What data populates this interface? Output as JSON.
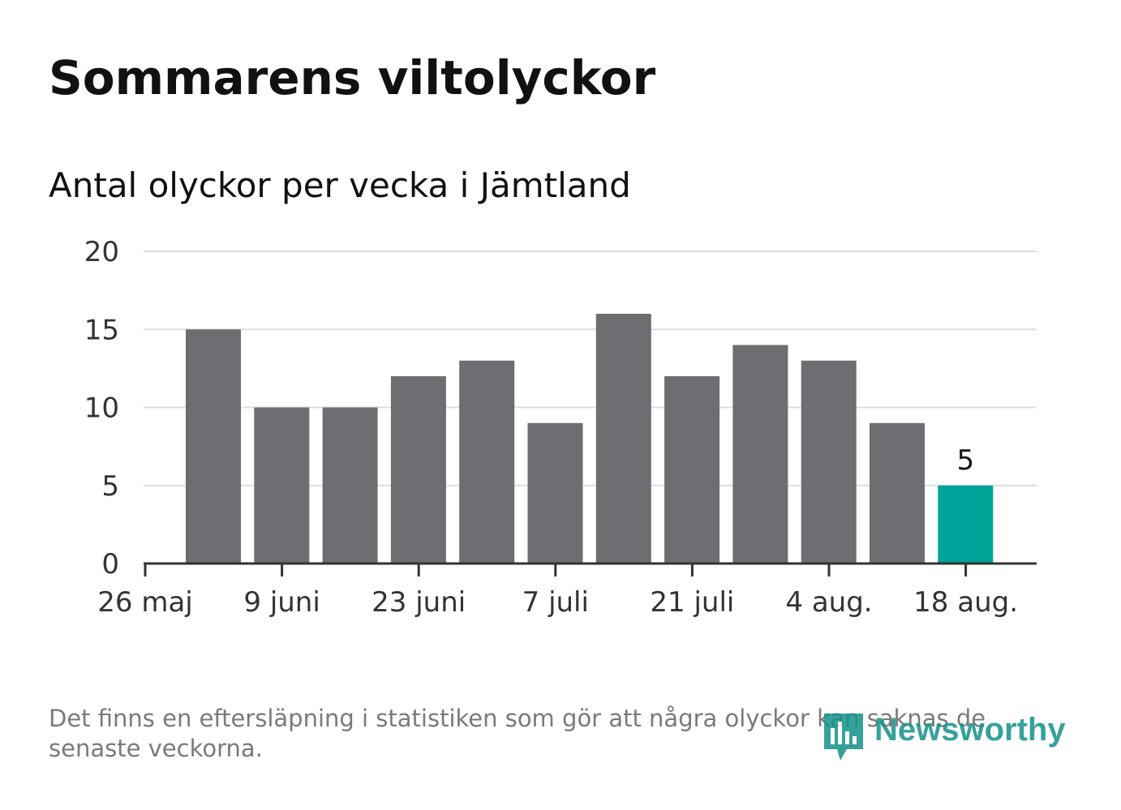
{
  "title": "Sommarens viltolyckor",
  "subtitle": "Antal olyckor per vecka i Jämtland",
  "footnote": "Det finns en eftersläpning i statistiken som gör att några olyckor kan saknas de senaste veckorna.",
  "logo": {
    "text": "Newsworthy",
    "icon": "bar-chart-badge-icon"
  },
  "colors": {
    "bar": "#6e6d72",
    "highlight": "#00a398",
    "grid": "#dddddd",
    "axis": "#333333",
    "text": "#333333"
  },
  "chart_data": {
    "type": "bar",
    "title": "Sommarens viltolyckor",
    "subtitle": "Antal olyckor per vecka i Jämtland",
    "xlabel": "",
    "ylabel": "",
    "ylim": [
      0,
      20
    ],
    "yticks": [
      0,
      5,
      10,
      15,
      20
    ],
    "x_tick_labels": [
      "26 maj",
      "9 juni",
      "23 juni",
      "7 juli",
      "21 juli",
      "4 aug.",
      "18 aug."
    ],
    "values": [
      15,
      10,
      10,
      12,
      13,
      9,
      16,
      12,
      14,
      13,
      9,
      5
    ],
    "highlight_index": 11,
    "data_labels": [
      {
        "index": 11,
        "text": "5"
      }
    ],
    "grid": true,
    "legend": "none"
  }
}
